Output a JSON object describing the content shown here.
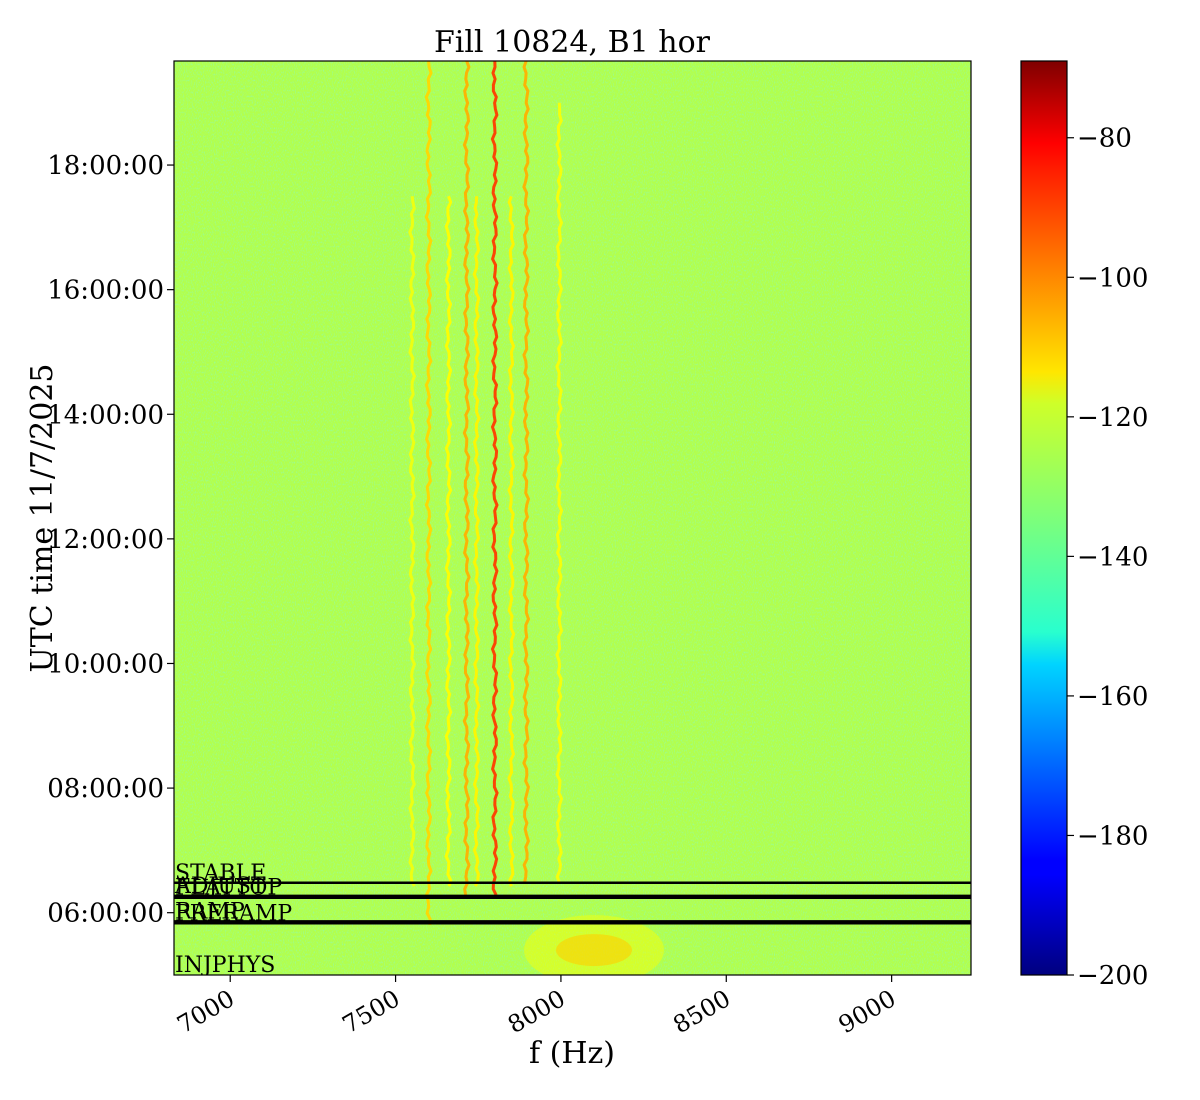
{
  "chart_data": {
    "type": "heatmap",
    "title": "Fill 10824, B1 hor",
    "xlabel": "f (Hz)",
    "ylabel": "UTC time 11/7/2025",
    "xlim": [
      6830,
      9240
    ],
    "ylim_hours": [
      5.0,
      19.67
    ],
    "x_ticks": [
      7000,
      7500,
      8000,
      8500,
      9000
    ],
    "x_tick_labels": [
      "7000",
      "7500",
      "8000",
      "8500",
      "9000"
    ],
    "y_ticks_hours": [
      6,
      8,
      10,
      12,
      14,
      16,
      18
    ],
    "y_tick_labels": [
      "06:00:00",
      "08:00:00",
      "10:00:00",
      "12:00:00",
      "14:00:00",
      "16:00:00",
      "18:00:00"
    ],
    "colorbar": {
      "colormap": "jet",
      "range": [
        -200,
        -69
      ],
      "ticks": [
        -80,
        -100,
        -120,
        -140,
        -160,
        -180,
        -200
      ],
      "tick_labels": [
        "−80",
        "−100",
        "−120",
        "−140",
        "−160",
        "−180",
        "−200"
      ]
    },
    "background_level": -128,
    "spectral_lines": [
      {
        "f": 7600,
        "level": -113,
        "start_hour": 5.8,
        "end_hour": 19.67
      },
      {
        "f": 7715,
        "level": -108,
        "start_hour": 6.2,
        "end_hour": 19.67
      },
      {
        "f": 7800,
        "level": -93,
        "start_hour": 6.2,
        "end_hour": 19.67
      },
      {
        "f": 7895,
        "level": -108,
        "start_hour": 6.4,
        "end_hour": 19.67
      },
      {
        "f": 7550,
        "level": -120,
        "start_hour": 6.4,
        "end_hour": 17.5
      },
      {
        "f": 7660,
        "level": -118,
        "start_hour": 6.4,
        "end_hour": 17.5
      },
      {
        "f": 7745,
        "level": -117,
        "start_hour": 6.4,
        "end_hour": 17.5
      },
      {
        "f": 7850,
        "level": -117,
        "start_hour": 6.4,
        "end_hour": 17.5
      },
      {
        "f": 7995,
        "level": -119,
        "start_hour": 6.4,
        "end_hour": 19.0
      }
    ],
    "hotspot": {
      "f": 8100,
      "hour": 5.4,
      "level": -112
    },
    "mode_lines": [
      {
        "label": "STABLE",
        "hour": 6.48
      },
      {
        "label": "ADJUST",
        "hour": 6.27
      },
      {
        "label": "FLATTOP",
        "hour": 6.24
      },
      {
        "label": "RAMP",
        "hour": 5.86
      },
      {
        "label": "PRERAMP",
        "hour": 5.83
      },
      {
        "label": "INJPHYS",
        "hour": 5.0
      }
    ]
  }
}
